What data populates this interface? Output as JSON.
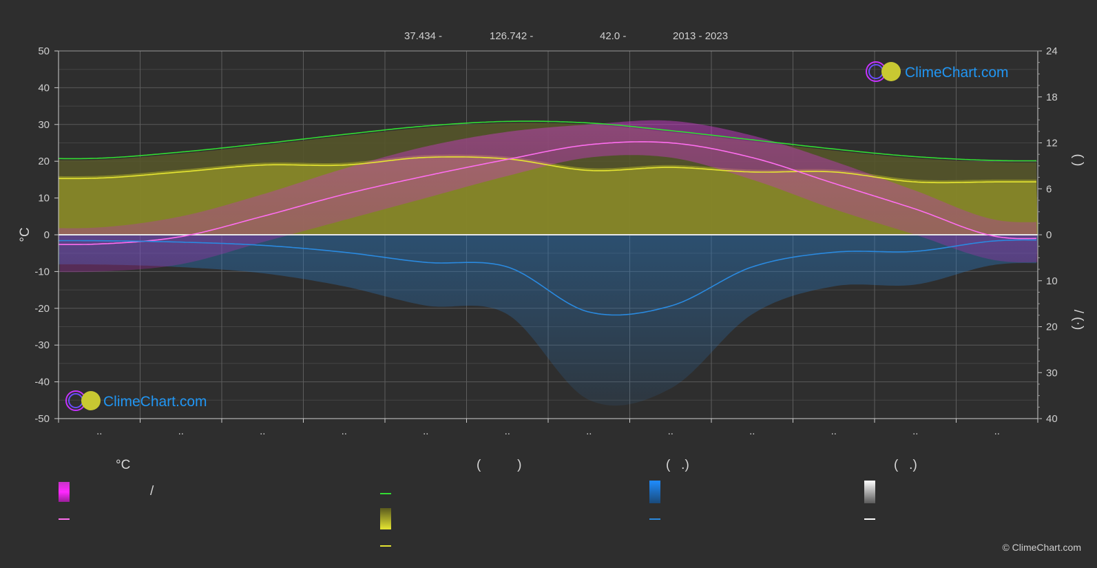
{
  "header": {
    "lat": "37.434 -",
    "lon": "126.742 -",
    "elevation": "42.0 -",
    "years": "2013 - 2023"
  },
  "logo_text": "ClimeChart.com",
  "copyright": "© ClimeChart.com",
  "colors": {
    "background": "#2e2e2e",
    "daylight": "#33dd33",
    "sunshine": "#e6e632",
    "sunshine_fill": "#8c8c28",
    "temp_mean": "#ff6ef0",
    "temp_fill": "#c832c8",
    "precip": "#2a8ae0",
    "precip_fill": "#1e5a8c",
    "snow": "#ffffff",
    "logo": "#2196f3"
  },
  "chart_data": {
    "type": "line",
    "months": [
      "..",
      "..",
      "..",
      "..",
      "..",
      "..",
      "..",
      "..",
      "..",
      "..",
      "..",
      ".."
    ],
    "y_left": {
      "label": "°C",
      "range": [
        -50,
        50
      ],
      "ticks": [
        "50",
        "40",
        "30",
        "20",
        "10",
        "0",
        "-10",
        "-20",
        "-30",
        "-40",
        "-50"
      ]
    },
    "y_right_top": {
      "label": "(  )",
      "range": [
        0,
        24
      ],
      "ticks": [
        "24",
        "18",
        "12",
        "6",
        "0"
      ]
    },
    "y_right_bottom": {
      "label": "/ (·)",
      "range": [
        0,
        40
      ],
      "ticks": [
        "0",
        "10",
        "20",
        "30",
        "40"
      ]
    },
    "series": [
      {
        "key": "daylight",
        "axis": "hours",
        "values": [
          10.0,
          10.8,
          11.9,
          13.1,
          14.2,
          14.8,
          14.6,
          13.6,
          12.4,
          11.2,
          10.2,
          9.7
        ]
      },
      {
        "key": "sunshine",
        "axis": "hours",
        "values": [
          7.4,
          8.2,
          9.1,
          9.1,
          10.1,
          9.9,
          8.4,
          8.8,
          8.2,
          8.2,
          6.9,
          6.9
        ]
      },
      {
        "key": "temp_mean",
        "axis": "celsius",
        "values": [
          -2.5,
          -0.5,
          5.0,
          11.0,
          16.0,
          20.5,
          24.5,
          25.0,
          21.0,
          14.0,
          7.0,
          -0.5
        ]
      },
      {
        "key": "precip",
        "axis": "mm",
        "values": [
          1.3,
          1.6,
          2.3,
          3.8,
          6.0,
          7.0,
          16.8,
          15.5,
          7.0,
          3.8,
          3.6,
          1.3
        ]
      }
    ],
    "temp_band": {
      "max": [
        2,
        5,
        11,
        18,
        24,
        28,
        30,
        31,
        27,
        20,
        12,
        4
      ],
      "min": [
        -10,
        -8,
        -2,
        4,
        10,
        16,
        21,
        21,
        15,
        7,
        0,
        -7
      ]
    }
  },
  "legend": {
    "col1": {
      "title": "°C",
      "item1": "/",
      "item2": ""
    },
    "col2": {
      "title": "(          )",
      "item1": "",
      "item2": "",
      "item3": ""
    },
    "col3": {
      "title": "(   .)",
      "item1": "",
      "item2": ""
    },
    "col4": {
      "title": "(   .)",
      "item1": "",
      "item2": ""
    }
  }
}
